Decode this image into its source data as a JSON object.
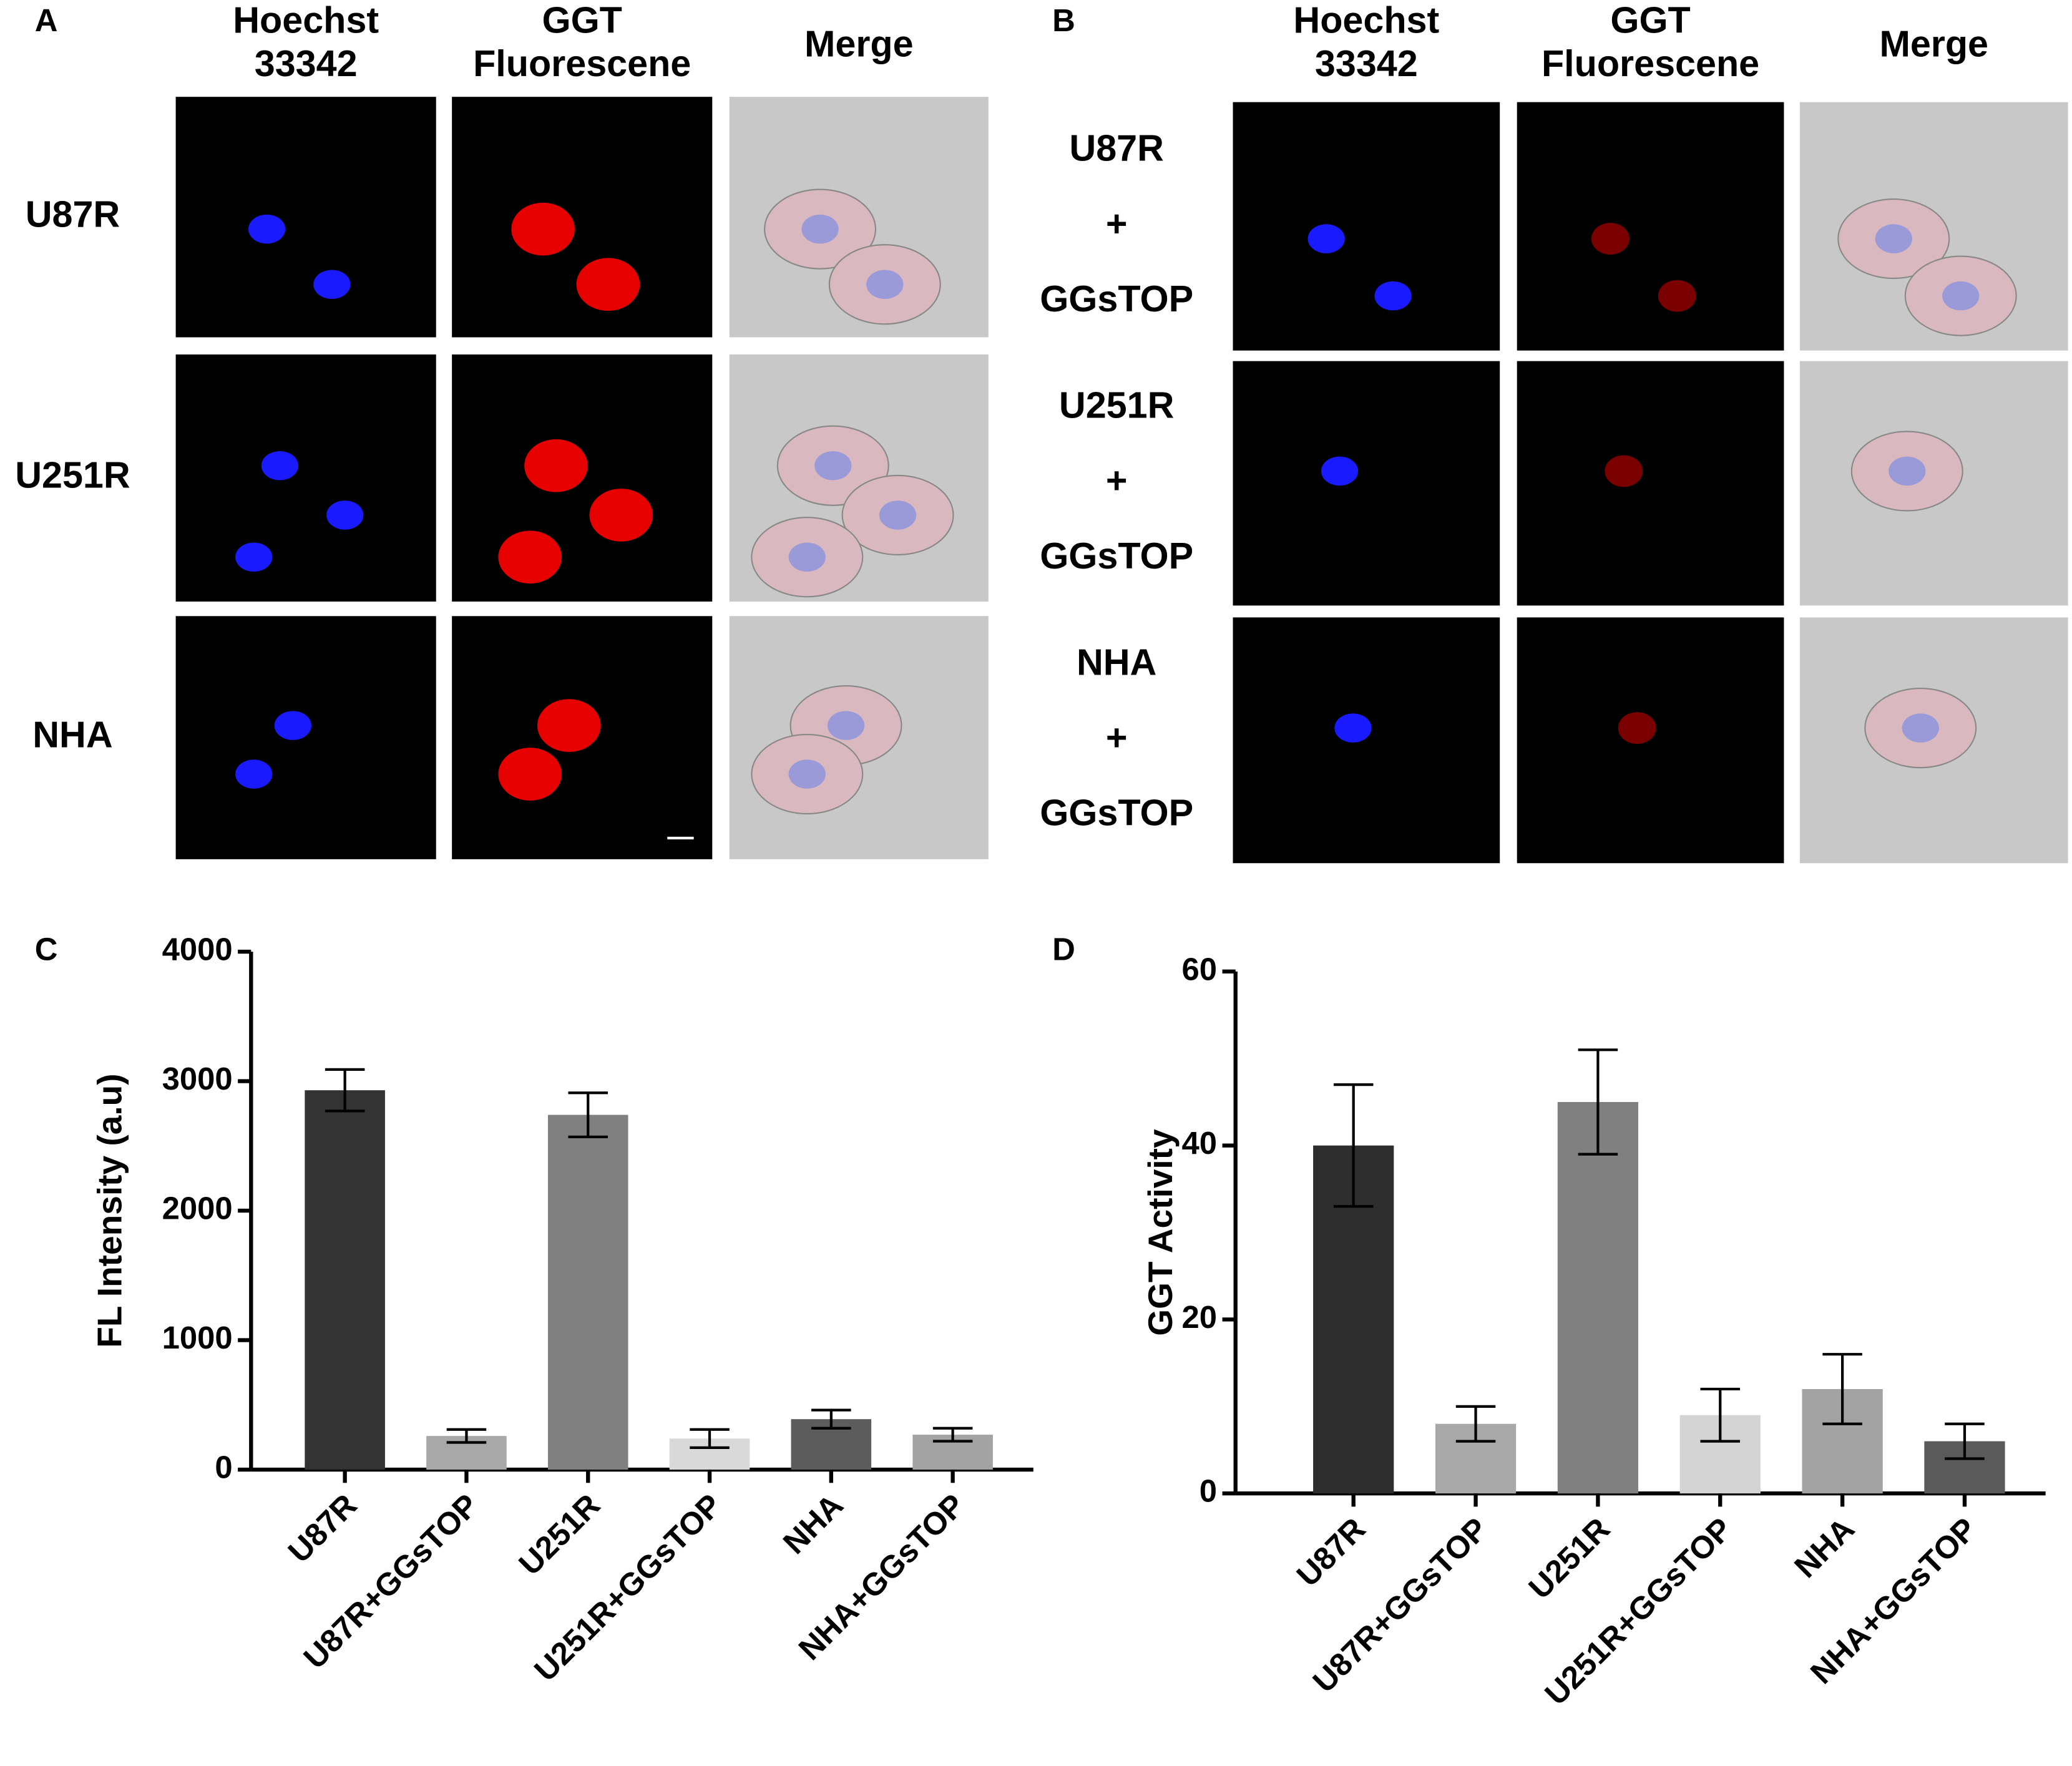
{
  "figure": {
    "panels": [
      {
        "label": "A",
        "column_headers": [
          [
            "Hoechst",
            "33342"
          ],
          [
            "GGT",
            "Fluorescene"
          ],
          [
            "Merge"
          ]
        ],
        "row_labels": [
          [
            "U87R"
          ],
          [
            "U251R"
          ],
          [
            "NHA"
          ]
        ]
      },
      {
        "label": "B",
        "column_headers": [
          [
            "Hoechst",
            "33342"
          ],
          [
            "GGT",
            "Fluorescene"
          ],
          [
            "Merge"
          ]
        ],
        "row_labels": [
          [
            "U87R",
            "+",
            "GGsTOP"
          ],
          [
            "U251R",
            "+",
            "GGsTOP"
          ],
          [
            "NHA",
            "+",
            "GGsTOP"
          ]
        ]
      }
    ]
  },
  "chart_data": [
    {
      "type": "bar",
      "label": "C",
      "ylabel": "FL Intensity (a.u)",
      "categories": [
        "U87R",
        "U87R+GGsTOP",
        "U251R",
        "U251R+GGsTOP",
        "NHA",
        "NHA+GGsTOP"
      ],
      "values": [
        2930,
        260,
        2740,
        240,
        390,
        270
      ],
      "errors": [
        160,
        50,
        170,
        70,
        70,
        50
      ],
      "colors": [
        "#333333",
        "#a8a8a8",
        "#808080",
        "#d9d9d9",
        "#5c5c5c",
        "#a3a3a3"
      ],
      "ylim": [
        0,
        4000
      ],
      "yticks": [
        0,
        1000,
        2000,
        3000,
        4000
      ]
    },
    {
      "type": "bar",
      "label": "D",
      "ylabel": "GGT Activity",
      "categories": [
        "U87R",
        "U87R+GGsTOP",
        "U251R",
        "U251R+GGsTOP",
        "NHA",
        "NHA+GGsTOP"
      ],
      "values": [
        40,
        8,
        45,
        9,
        12,
        6
      ],
      "errors": [
        7,
        2,
        6,
        3,
        4,
        2
      ],
      "colors": [
        "#2e2e2e",
        "#a8a8a8",
        "#808080",
        "#d4d4d4",
        "#a3a3a3",
        "#5a5a5a"
      ],
      "ylim": [
        0,
        60
      ],
      "yticks": [
        0,
        20,
        40,
        60
      ]
    }
  ]
}
